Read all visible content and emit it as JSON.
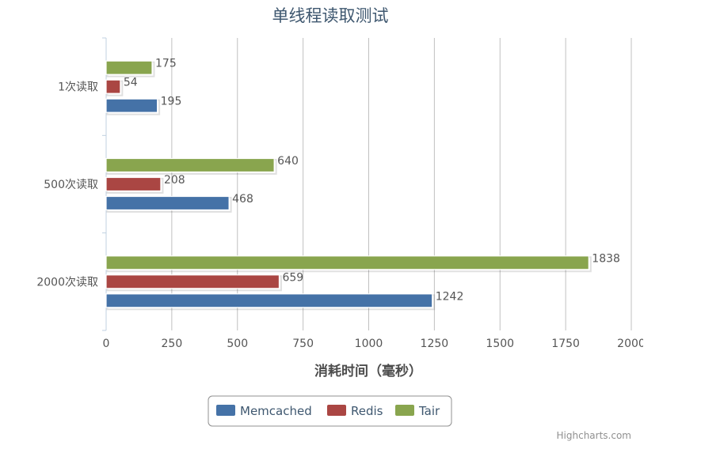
{
  "chart_data": {
    "type": "bar",
    "orientation": "horizontal",
    "title": "单线程读取测试",
    "xlabel": "消耗时间（毫秒）",
    "ylabel": "",
    "categories": [
      "1次读取",
      "500次读取",
      "2000次读取"
    ],
    "series": [
      {
        "name": "Memcached",
        "color": "#4572A7",
        "values": [
          195,
          468,
          1242
        ]
      },
      {
        "name": "Redis",
        "color": "#AA4643",
        "values": [
          54,
          208,
          659
        ]
      },
      {
        "name": "Tair",
        "color": "#89A54E",
        "values": [
          175,
          640,
          1838
        ]
      }
    ],
    "xlim": [
      0,
      2000
    ],
    "ticks": [
      "0",
      "250",
      "500",
      "750",
      "1000",
      "1250",
      "1500",
      "1750",
      "2000"
    ],
    "grid": true,
    "legend_position": "bottom-center",
    "data_labels": true
  },
  "credits": "Highcharts.com"
}
